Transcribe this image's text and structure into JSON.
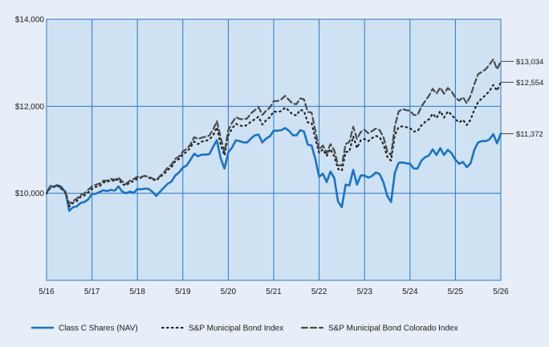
{
  "chart_data": {
    "type": "line",
    "title": "",
    "xlabel": "",
    "ylabel": "",
    "x_ticks": [
      "5/16",
      "5/17",
      "5/18",
      "5/19",
      "5/20",
      "5/21",
      "5/22",
      "5/23",
      "5/24",
      "5/25",
      "5/26"
    ],
    "y_ticks": [
      {
        "value": 10000,
        "label": "$10,000"
      },
      {
        "value": 12000,
        "label": "$12,000"
      },
      {
        "value": 14000,
        "label": "$14,000"
      }
    ],
    "ylim": [
      8000,
      14000
    ],
    "xlim": [
      0,
      120
    ],
    "grid": true,
    "legend": "bottom",
    "series": [
      {
        "name": "Class C Shares (NAV)",
        "color": "#1a73c7",
        "style": "solid",
        "end_label": "$11,372",
        "values": [
          10000,
          10170,
          10150,
          10180,
          10100,
          10040,
          9600,
          9680,
          9700,
          9780,
          9800,
          9860,
          9980,
          9990,
          10030,
          10070,
          10050,
          10080,
          10060,
          10160,
          10040,
          10000,
          10040,
          10010,
          10100,
          10090,
          10110,
          10100,
          10030,
          9940,
          10040,
          10130,
          10220,
          10270,
          10410,
          10480,
          10590,
          10640,
          10770,
          10910,
          10850,
          10890,
          10890,
          10900,
          11070,
          11220,
          10800,
          10570,
          10940,
          11050,
          11220,
          11200,
          11170,
          11170,
          11260,
          11330,
          11350,
          11170,
          11260,
          11310,
          11440,
          11440,
          11450,
          11500,
          11440,
          11340,
          11330,
          11450,
          11420,
          11120,
          11100,
          10790,
          10380,
          10450,
          10260,
          10500,
          10350,
          9810,
          9680,
          10200,
          10180,
          10540,
          10200,
          10410,
          10410,
          10360,
          10400,
          10480,
          10440,
          10250,
          9940,
          9800,
          10470,
          10700,
          10710,
          10690,
          10680,
          10570,
          10570,
          10750,
          10830,
          10870,
          11010,
          10880,
          11040,
          10880,
          11000,
          10920,
          10770,
          10680,
          10720,
          10600,
          10690,
          11000,
          11170,
          11200,
          11200,
          11240,
          11360,
          11150,
          11372
        ]
      },
      {
        "name": "S&P Municipal Bond Index",
        "color": "#222222",
        "style": "dotted",
        "end_label": "$12,554",
        "values": [
          10000,
          10120,
          10150,
          10180,
          10120,
          10000,
          9700,
          9780,
          9820,
          9920,
          9950,
          10020,
          10100,
          10150,
          10160,
          10250,
          10260,
          10310,
          10280,
          10330,
          10210,
          10180,
          10250,
          10280,
          10340,
          10360,
          10400,
          10360,
          10320,
          10290,
          10380,
          10440,
          10540,
          10600,
          10740,
          10790,
          10900,
          10950,
          11050,
          11190,
          11130,
          11190,
          11200,
          11240,
          11330,
          11520,
          11120,
          10870,
          11330,
          11490,
          11600,
          11560,
          11540,
          11570,
          11650,
          11700,
          11760,
          11580,
          11680,
          11750,
          11880,
          11870,
          11890,
          11970,
          11900,
          11810,
          11790,
          11920,
          11890,
          11630,
          11620,
          11260,
          10930,
          11010,
          10860,
          11020,
          10850,
          10560,
          10520,
          10950,
          10960,
          11310,
          11040,
          11220,
          11250,
          11200,
          11270,
          11320,
          11290,
          11120,
          10840,
          10750,
          11340,
          11520,
          11540,
          11520,
          11500,
          11420,
          11430,
          11560,
          11640,
          11700,
          11830,
          11730,
          11890,
          11740,
          11880,
          11810,
          11700,
          11630,
          11690,
          11570,
          11690,
          11920,
          12100,
          12180,
          12260,
          12350,
          12490,
          12360,
          12554
        ]
      },
      {
        "name": "S&P Municipal Bond Colorado Index",
        "color": "#4a4a4a",
        "style": "dashed",
        "end_label": "$13,034",
        "values": [
          10000,
          10150,
          10160,
          10200,
          10140,
          10020,
          9760,
          9820,
          9880,
          9960,
          10000,
          10080,
          10160,
          10200,
          10220,
          10290,
          10290,
          10330,
          10310,
          10360,
          10270,
          10220,
          10290,
          10330,
          10380,
          10380,
          10400,
          10380,
          10340,
          10310,
          10400,
          10480,
          10590,
          10660,
          10790,
          10850,
          10960,
          11020,
          11120,
          11290,
          11250,
          11280,
          11300,
          11330,
          11460,
          11660,
          11280,
          10940,
          11450,
          11620,
          11750,
          11710,
          11700,
          11720,
          11840,
          11910,
          11980,
          11800,
          11900,
          11970,
          12120,
          12120,
          12160,
          12240,
          12150,
          12060,
          12050,
          12180,
          12160,
          11870,
          11860,
          11440,
          11000,
          11100,
          10920,
          11130,
          10990,
          10640,
          10640,
          11130,
          11180,
          11530,
          11250,
          11410,
          11460,
          11380,
          11430,
          11490,
          11450,
          11290,
          10970,
          10870,
          11540,
          11880,
          11940,
          11910,
          11900,
          11800,
          11800,
          11990,
          12120,
          12240,
          12400,
          12290,
          12430,
          12290,
          12420,
          12340,
          12200,
          12130,
          12210,
          12070,
          12240,
          12510,
          12740,
          12790,
          12850,
          12960,
          13080,
          12850,
          13034
        ]
      }
    ]
  }
}
